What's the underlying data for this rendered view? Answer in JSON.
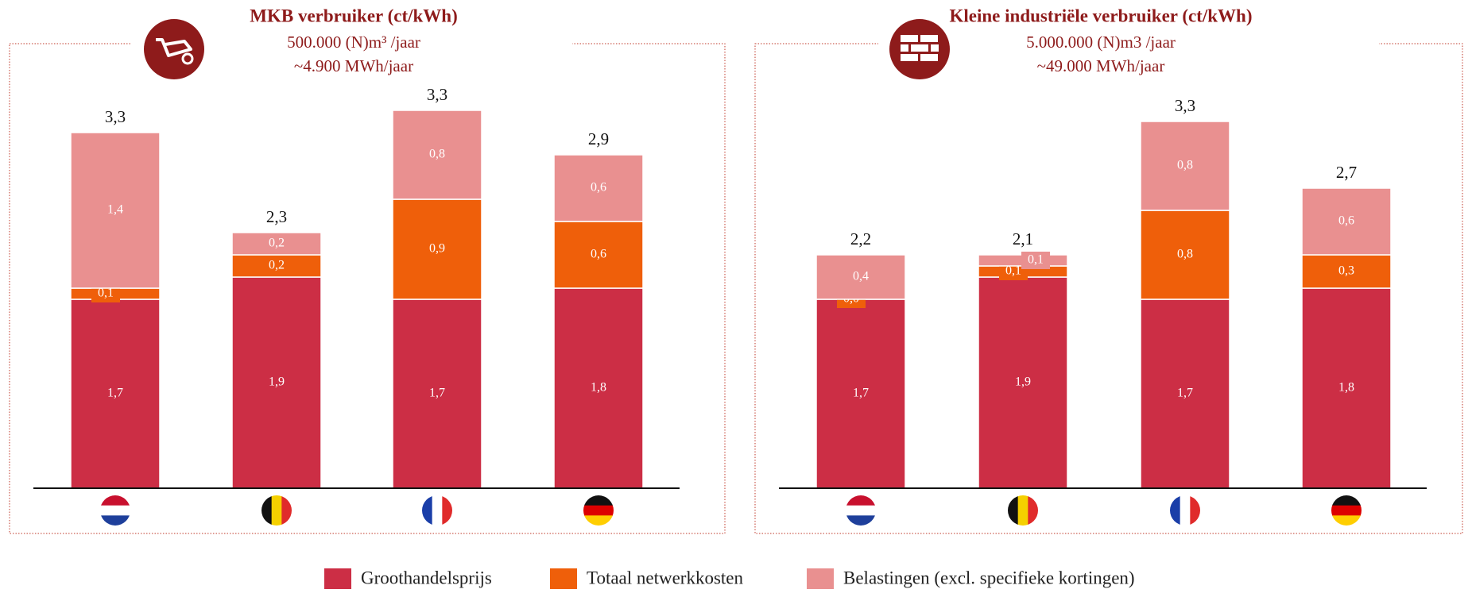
{
  "chart_data": [
    {
      "type": "bar",
      "stacked": true,
      "title": "MKB verbruiker (ct/kWh)",
      "subtitle": [
        "500.000 (N)m³ /jaar",
        "~4.900 MWh/jaar"
      ],
      "categories": [
        null,
        null,
        null,
        null
      ],
      "series": [
        {
          "name": "Groothandelsprijs",
          "color": "#cc2e45",
          "values": [
            1.7,
            1.9,
            1.7,
            1.8
          ],
          "value_labels": [
            "1,7",
            "1,9",
            "1,7",
            "1,8"
          ]
        },
        {
          "name": "Totaal netwerkkosten",
          "color": "#ef5f0a",
          "values": [
            0.1,
            0.2,
            0.9,
            0.6
          ],
          "value_labels": [
            "0,1",
            "0,2",
            "0,9",
            "0,6"
          ]
        },
        {
          "name": "Belastingen (excl. specifieke kortingen)",
          "color": "#e99090",
          "values": [
            1.4,
            0.2,
            0.8,
            0.6
          ],
          "value_labels": [
            "1,4",
            "0,2",
            "0,8",
            "0,6"
          ]
        }
      ],
      "totals": {
        "values": [
          3.3,
          2.3,
          3.3,
          2.9
        ],
        "value_labels": [
          "3,3",
          "2,3",
          "3,3",
          "2,9"
        ]
      }
    },
    {
      "type": "bar",
      "stacked": true,
      "title": "Kleine industriële verbruiker (ct/kWh)",
      "subtitle": [
        "5.000.000 (N)m3 /jaar",
        "~49.000 MWh/jaar"
      ],
      "categories": [
        null,
        null,
        null,
        null
      ],
      "series": [
        {
          "name": "Groothandelsprijs",
          "color": "#cc2e45",
          "values": [
            1.7,
            1.9,
            1.7,
            1.8
          ],
          "value_labels": [
            "1,7",
            "1,9",
            "1,7",
            "1,8"
          ]
        },
        {
          "name": "Totaal netwerkkosten",
          "color": "#ef5f0a",
          "values": [
            0.0,
            0.1,
            0.8,
            0.3
          ],
          "value_labels": [
            "0,0",
            "0,1",
            "0,8",
            "0,3"
          ]
        },
        {
          "name": "Belastingen (excl. specifieke kortingen)",
          "color": "#e99090",
          "values": [
            0.4,
            0.1,
            0.8,
            0.6
          ],
          "value_labels": [
            "0,4",
            "0,1",
            "0,8",
            "0,6"
          ]
        }
      ],
      "totals": {
        "values": [
          2.2,
          2.1,
          3.3,
          2.7
        ],
        "value_labels": [
          "2,2",
          "2,1",
          "3,3",
          "2,7"
        ]
      }
    }
  ]
}
